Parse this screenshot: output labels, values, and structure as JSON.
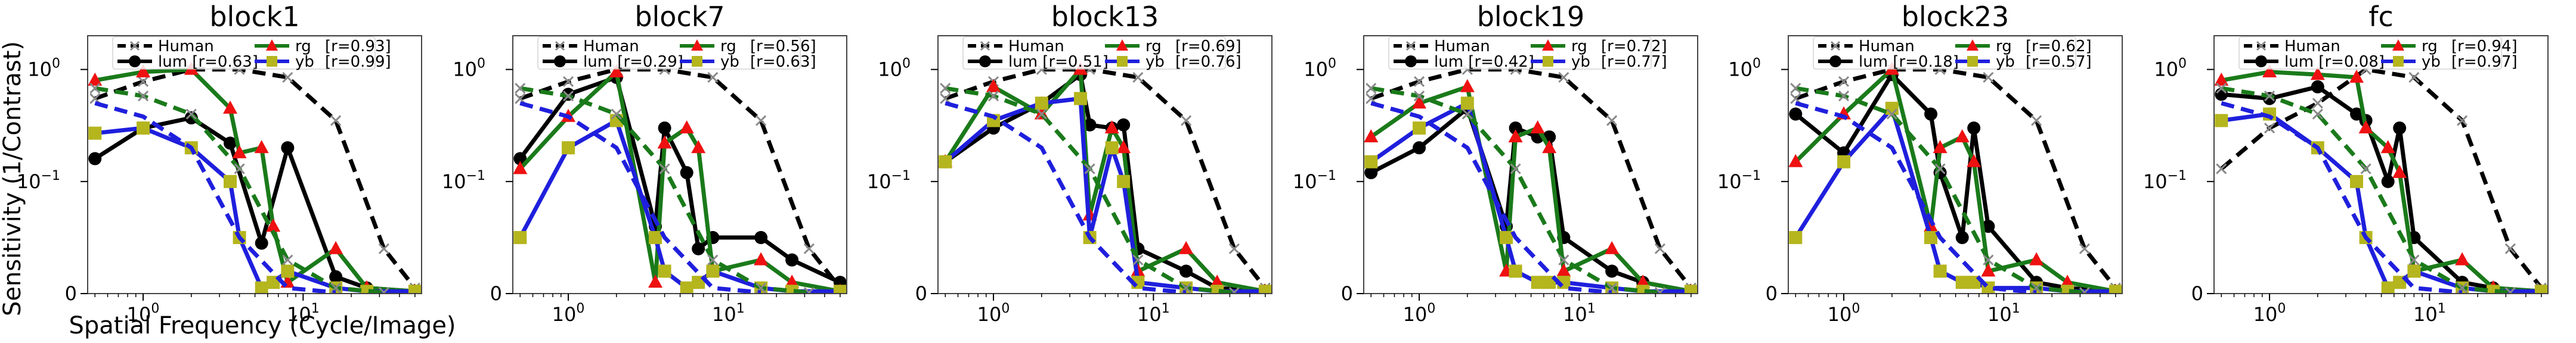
{
  "figure": {
    "ylabel": "Sensitivity (1/Contrast)",
    "xlabel": "Spatial Frequency (Cycle/Image)"
  },
  "colors": {
    "human": "#000000",
    "lum": "#000000",
    "rg": "#1a7a1a",
    "yb": "#1f1fdd",
    "rg_marker": "#ee1111",
    "yb_marker": "#b5b51e"
  },
  "chart_data": [
    {
      "type": "line",
      "title": "block1",
      "xscale": "log",
      "yscale": "symlog",
      "xlim": [
        0.45,
        55
      ],
      "ylim": [
        0,
        2.0
      ],
      "xticks": [
        "10^0",
        "10^1"
      ],
      "yticks": [
        "0",
        "10^-1",
        "10^0"
      ],
      "legend": [
        "Human",
        "lum [r=0.63]",
        "rg",
        "yb",
        "[r=0.93]",
        "[r=0.99]"
      ],
      "series": [
        {
          "name": "Human",
          "kind": "human-lum",
          "x": [
            0.5,
            1,
            2,
            4,
            8,
            16,
            32,
            50
          ],
          "y": [
            0.55,
            0.78,
            1.0,
            1.0,
            0.85,
            0.35,
            0.04,
            0.005
          ]
        },
        {
          "name": "lum",
          "kind": "lum",
          "x": [
            0.5,
            1,
            2,
            3.5,
            5.5,
            8,
            16,
            25,
            50
          ],
          "y": [
            0.16,
            0.3,
            0.37,
            0.22,
            0.045,
            0.2,
            0.015,
            0.005,
            0.002
          ]
        },
        {
          "name": "rg",
          "kind": "rg",
          "x": [
            0.5,
            1,
            2,
            3.5,
            4,
            5.5,
            6.5,
            8,
            16,
            25,
            50
          ],
          "y": [
            0.8,
            0.95,
            1.0,
            0.45,
            0.18,
            0.2,
            0.06,
            0.01,
            0.04,
            0.005,
            0.002
          ]
        },
        {
          "name": "yb",
          "kind": "yb",
          "x": [
            0.5,
            1,
            2,
            3.5,
            4,
            5.5,
            6.5,
            8,
            16,
            25,
            50
          ],
          "y": [
            0.27,
            0.3,
            0.2,
            0.1,
            0.05,
            0.005,
            0.01,
            0.02,
            0.005,
            0.002,
            0.002
          ]
        },
        {
          "name": "rg human",
          "kind": "human-rg",
          "x": [
            0.5,
            1,
            2,
            4,
            8,
            16,
            32
          ],
          "y": [
            0.68,
            0.58,
            0.4,
            0.13,
            0.03,
            0.005,
            0.001
          ]
        },
        {
          "name": "yb human",
          "kind": "human-yb",
          "x": [
            0.5,
            1,
            2,
            4,
            8,
            16
          ],
          "y": [
            0.5,
            0.38,
            0.2,
            0.05,
            0.005,
            0.001
          ]
        }
      ]
    },
    {
      "type": "line",
      "title": "block7",
      "xscale": "log",
      "yscale": "symlog",
      "xlim": [
        0.45,
        55
      ],
      "ylim": [
        0,
        2.0
      ],
      "xticks": [
        "10^0",
        "10^1"
      ],
      "yticks": [
        "0",
        "10^-1",
        "10^0"
      ],
      "legend": [
        "Human",
        "lum [r=0.29]",
        "rg",
        "yb",
        "[r=0.56]",
        "[r=0.63]"
      ],
      "series": [
        {
          "name": "Human",
          "kind": "human-lum",
          "x": [
            0.5,
            1,
            2,
            4,
            8,
            16,
            32,
            50
          ],
          "y": [
            0.55,
            0.78,
            1.0,
            1.0,
            0.85,
            0.35,
            0.04,
            0.005
          ]
        },
        {
          "name": "lum",
          "kind": "lum",
          "x": [
            0.5,
            1,
            2,
            3.5,
            4,
            5.5,
            6.5,
            8,
            16,
            25,
            50
          ],
          "y": [
            0.16,
            0.6,
            0.85,
            0.06,
            0.3,
            0.12,
            0.04,
            0.05,
            0.05,
            0.03,
            0.01
          ]
        },
        {
          "name": "rg",
          "kind": "rg",
          "x": [
            0.5,
            1,
            2,
            3.5,
            4,
            5.5,
            6.5,
            8,
            16,
            25,
            50
          ],
          "y": [
            0.13,
            0.38,
            0.95,
            0.01,
            0.22,
            0.3,
            0.2,
            0.02,
            0.03,
            0.01,
            0.002
          ]
        },
        {
          "name": "yb",
          "kind": "yb",
          "x": [
            0.5,
            1,
            2,
            3.5,
            4,
            5.5,
            6.5,
            8,
            16,
            25,
            50
          ],
          "y": [
            0.05,
            0.2,
            0.35,
            0.05,
            0.02,
            0.005,
            0.01,
            0.02,
            0.005,
            0.002,
            0.002
          ]
        },
        {
          "name": "rg human",
          "kind": "human-rg",
          "x": [
            0.5,
            1,
            2,
            4,
            8,
            16,
            32
          ],
          "y": [
            0.68,
            0.58,
            0.4,
            0.13,
            0.03,
            0.005,
            0.001
          ]
        },
        {
          "name": "yb human",
          "kind": "human-yb",
          "x": [
            0.5,
            1,
            2,
            4,
            8,
            16
          ],
          "y": [
            0.5,
            0.38,
            0.2,
            0.05,
            0.005,
            0.001
          ]
        }
      ]
    },
    {
      "type": "line",
      "title": "block13",
      "xscale": "log",
      "yscale": "symlog",
      "xlim": [
        0.45,
        55
      ],
      "ylim": [
        0,
        2.0
      ],
      "xticks": [
        "10^0",
        "10^1"
      ],
      "yticks": [
        "0",
        "10^-1",
        "10^0"
      ],
      "legend": [
        "Human",
        "lum [r=0.51]",
        "rg",
        "yb",
        "[r=0.69]",
        "[r=0.76]"
      ],
      "series": [
        {
          "name": "Human",
          "kind": "human-lum",
          "x": [
            0.5,
            1,
            2,
            4,
            8,
            16,
            32,
            50
          ],
          "y": [
            0.55,
            0.78,
            1.0,
            1.0,
            0.85,
            0.35,
            0.04,
            0.005
          ]
        },
        {
          "name": "lum",
          "kind": "lum",
          "x": [
            0.5,
            1,
            2,
            3.5,
            4,
            5.5,
            6.5,
            8,
            16,
            25,
            50
          ],
          "y": [
            0.15,
            0.3,
            0.5,
            0.9,
            0.32,
            0.3,
            0.32,
            0.04,
            0.02,
            0.005,
            0.002
          ]
        },
        {
          "name": "rg",
          "kind": "rg",
          "x": [
            0.5,
            1,
            2,
            3.5,
            4,
            5.5,
            6.5,
            8,
            16,
            25,
            50
          ],
          "y": [
            0.15,
            0.7,
            0.4,
            1.0,
            0.07,
            0.3,
            0.2,
            0.02,
            0.04,
            0.01,
            0.002
          ]
        },
        {
          "name": "yb",
          "kind": "yb",
          "x": [
            0.5,
            1,
            2,
            3.5,
            4,
            5.5,
            6.5,
            8,
            16,
            25,
            50
          ],
          "y": [
            0.15,
            0.35,
            0.5,
            0.55,
            0.05,
            0.2,
            0.1,
            0.01,
            0.005,
            0.002,
            0.002
          ]
        },
        {
          "name": "rg human",
          "kind": "human-rg",
          "x": [
            0.5,
            1,
            2,
            4,
            8,
            16,
            32
          ],
          "y": [
            0.68,
            0.58,
            0.4,
            0.13,
            0.03,
            0.005,
            0.001
          ]
        },
        {
          "name": "yb human",
          "kind": "human-yb",
          "x": [
            0.5,
            1,
            2,
            4,
            8,
            16
          ],
          "y": [
            0.5,
            0.38,
            0.2,
            0.05,
            0.005,
            0.001
          ]
        }
      ]
    },
    {
      "type": "line",
      "title": "block19",
      "xscale": "log",
      "yscale": "symlog",
      "xlim": [
        0.45,
        55
      ],
      "ylim": [
        0,
        2.0
      ],
      "xticks": [
        "10^0",
        "10^1"
      ],
      "yticks": [
        "0",
        "10^-1",
        "10^0"
      ],
      "legend": [
        "Human",
        "lum [r=0.42]",
        "rg",
        "yb",
        "[r=0.72]",
        "[r=0.77]"
      ],
      "series": [
        {
          "name": "Human",
          "kind": "human-lum",
          "x": [
            0.5,
            1,
            2,
            4,
            8,
            16,
            32,
            50
          ],
          "y": [
            0.55,
            0.78,
            1.0,
            1.0,
            0.85,
            0.35,
            0.04,
            0.005
          ]
        },
        {
          "name": "lum",
          "kind": "lum",
          "x": [
            0.5,
            1,
            2,
            3.5,
            4,
            5.5,
            6.5,
            8,
            16,
            25,
            50
          ],
          "y": [
            0.12,
            0.2,
            0.45,
            0.06,
            0.3,
            0.25,
            0.25,
            0.05,
            0.02,
            0.01,
            0.002
          ]
        },
        {
          "name": "rg",
          "kind": "rg",
          "x": [
            0.5,
            1,
            2,
            3.5,
            4,
            5.5,
            6.5,
            8,
            16,
            25,
            50
          ],
          "y": [
            0.25,
            0.5,
            0.7,
            0.02,
            0.25,
            0.3,
            0.2,
            0.02,
            0.04,
            0.01,
            0.002
          ]
        },
        {
          "name": "yb",
          "kind": "yb",
          "x": [
            0.5,
            1,
            2,
            3.5,
            4,
            5.5,
            6.5,
            8,
            16,
            25,
            50
          ],
          "y": [
            0.15,
            0.3,
            0.5,
            0.05,
            0.02,
            0.01,
            0.01,
            0.01,
            0.005,
            0.002,
            0.002
          ]
        },
        {
          "name": "rg human",
          "kind": "human-rg",
          "x": [
            0.5,
            1,
            2,
            4,
            8,
            16,
            32
          ],
          "y": [
            0.68,
            0.58,
            0.4,
            0.13,
            0.03,
            0.005,
            0.001
          ]
        },
        {
          "name": "yb human",
          "kind": "human-yb",
          "x": [
            0.5,
            1,
            2,
            4,
            8,
            16
          ],
          "y": [
            0.5,
            0.38,
            0.2,
            0.05,
            0.005,
            0.001
          ]
        }
      ]
    },
    {
      "type": "line",
      "title": "block23",
      "xscale": "log",
      "yscale": "symlog",
      "xlim": [
        0.45,
        55
      ],
      "ylim": [
        0,
        2.0
      ],
      "xticks": [
        "10^0",
        "10^1"
      ],
      "yticks": [
        "0",
        "10^-1",
        "10^0"
      ],
      "legend": [
        "Human",
        "lum [r=0.18]",
        "rg",
        "yb",
        "[r=0.62]",
        "[r=0.57]"
      ],
      "series": [
        {
          "name": "Human",
          "kind": "human-lum",
          "x": [
            0.5,
            1,
            2,
            4,
            8,
            16,
            32,
            50
          ],
          "y": [
            0.55,
            0.78,
            1.0,
            1.0,
            0.85,
            0.35,
            0.04,
            0.005
          ]
        },
        {
          "name": "lum",
          "kind": "lum",
          "x": [
            0.5,
            1,
            2,
            3.5,
            4,
            5.5,
            6.5,
            8,
            16,
            25,
            50
          ],
          "y": [
            0.4,
            0.18,
            0.9,
            0.4,
            0.12,
            0.05,
            0.3,
            0.06,
            0.01,
            0.005,
            0.002
          ]
        },
        {
          "name": "rg",
          "kind": "rg",
          "x": [
            0.5,
            1,
            2,
            3.5,
            4,
            5.5,
            6.5,
            8,
            16,
            25,
            50
          ],
          "y": [
            0.15,
            0.4,
            1.0,
            0.06,
            0.2,
            0.25,
            0.15,
            0.02,
            0.03,
            0.01,
            0.002
          ]
        },
        {
          "name": "yb",
          "kind": "yb",
          "x": [
            0.5,
            1,
            2,
            3.5,
            4,
            5.5,
            6.5,
            8,
            16,
            25,
            50
          ],
          "y": [
            0.05,
            0.15,
            0.45,
            0.05,
            0.02,
            0.01,
            0.01,
            0.005,
            0.005,
            0.002,
            0.002
          ]
        },
        {
          "name": "rg human",
          "kind": "human-rg",
          "x": [
            0.5,
            1,
            2,
            4,
            8,
            16,
            32
          ],
          "y": [
            0.68,
            0.58,
            0.4,
            0.13,
            0.03,
            0.005,
            0.001
          ]
        },
        {
          "name": "yb human",
          "kind": "human-yb",
          "x": [
            0.5,
            1,
            2,
            4,
            8,
            16
          ],
          "y": [
            0.5,
            0.38,
            0.2,
            0.05,
            0.005,
            0.001
          ]
        }
      ]
    },
    {
      "type": "line",
      "title": "fc",
      "xscale": "log",
      "yscale": "symlog",
      "xlim": [
        0.45,
        55
      ],
      "ylim": [
        0,
        2.0
      ],
      "xticks": [
        "10^0",
        "10^1"
      ],
      "yticks": [
        "0",
        "10^-1",
        "10^0"
      ],
      "legend": [
        "Human",
        "lum [r=0.08]",
        "rg",
        "yb",
        "[r=0.94]",
        "[r=0.97]"
      ],
      "series": [
        {
          "name": "Human",
          "kind": "human-lum",
          "x": [
            0.5,
            1,
            2,
            4,
            8,
            16,
            32,
            50
          ],
          "y": [
            0.13,
            0.3,
            0.5,
            1.0,
            0.85,
            0.35,
            0.04,
            0.005
          ]
        },
        {
          "name": "lum",
          "kind": "lum",
          "x": [
            0.5,
            1,
            2,
            3.5,
            4,
            5.5,
            6.5,
            8,
            16,
            25,
            50
          ],
          "y": [
            0.6,
            0.55,
            0.7,
            0.4,
            0.35,
            0.1,
            0.3,
            0.05,
            0.01,
            0.005,
            0.002
          ]
        },
        {
          "name": "rg",
          "kind": "rg",
          "x": [
            0.5,
            1,
            2,
            3.5,
            4,
            5.5,
            6.5,
            8,
            16,
            25,
            50
          ],
          "y": [
            0.8,
            0.95,
            0.9,
            0.85,
            0.3,
            0.2,
            0.12,
            0.02,
            0.03,
            0.005,
            0.002
          ]
        },
        {
          "name": "yb",
          "kind": "yb",
          "x": [
            0.5,
            1,
            2,
            3.5,
            4,
            5.5,
            6.5,
            8,
            16,
            25,
            50
          ],
          "y": [
            0.35,
            0.4,
            0.2,
            0.1,
            0.05,
            0.005,
            0.01,
            0.02,
            0.005,
            0.002,
            0.002
          ]
        },
        {
          "name": "rg human",
          "kind": "human-rg",
          "x": [
            0.5,
            1,
            2,
            4,
            8,
            16,
            32
          ],
          "y": [
            0.68,
            0.58,
            0.4,
            0.13,
            0.03,
            0.005,
            0.001
          ]
        },
        {
          "name": "yb human",
          "kind": "human-yb",
          "x": [
            0.5,
            1,
            2,
            4,
            8,
            16
          ],
          "y": [
            0.5,
            0.38,
            0.2,
            0.05,
            0.005,
            0.001
          ]
        }
      ]
    }
  ]
}
